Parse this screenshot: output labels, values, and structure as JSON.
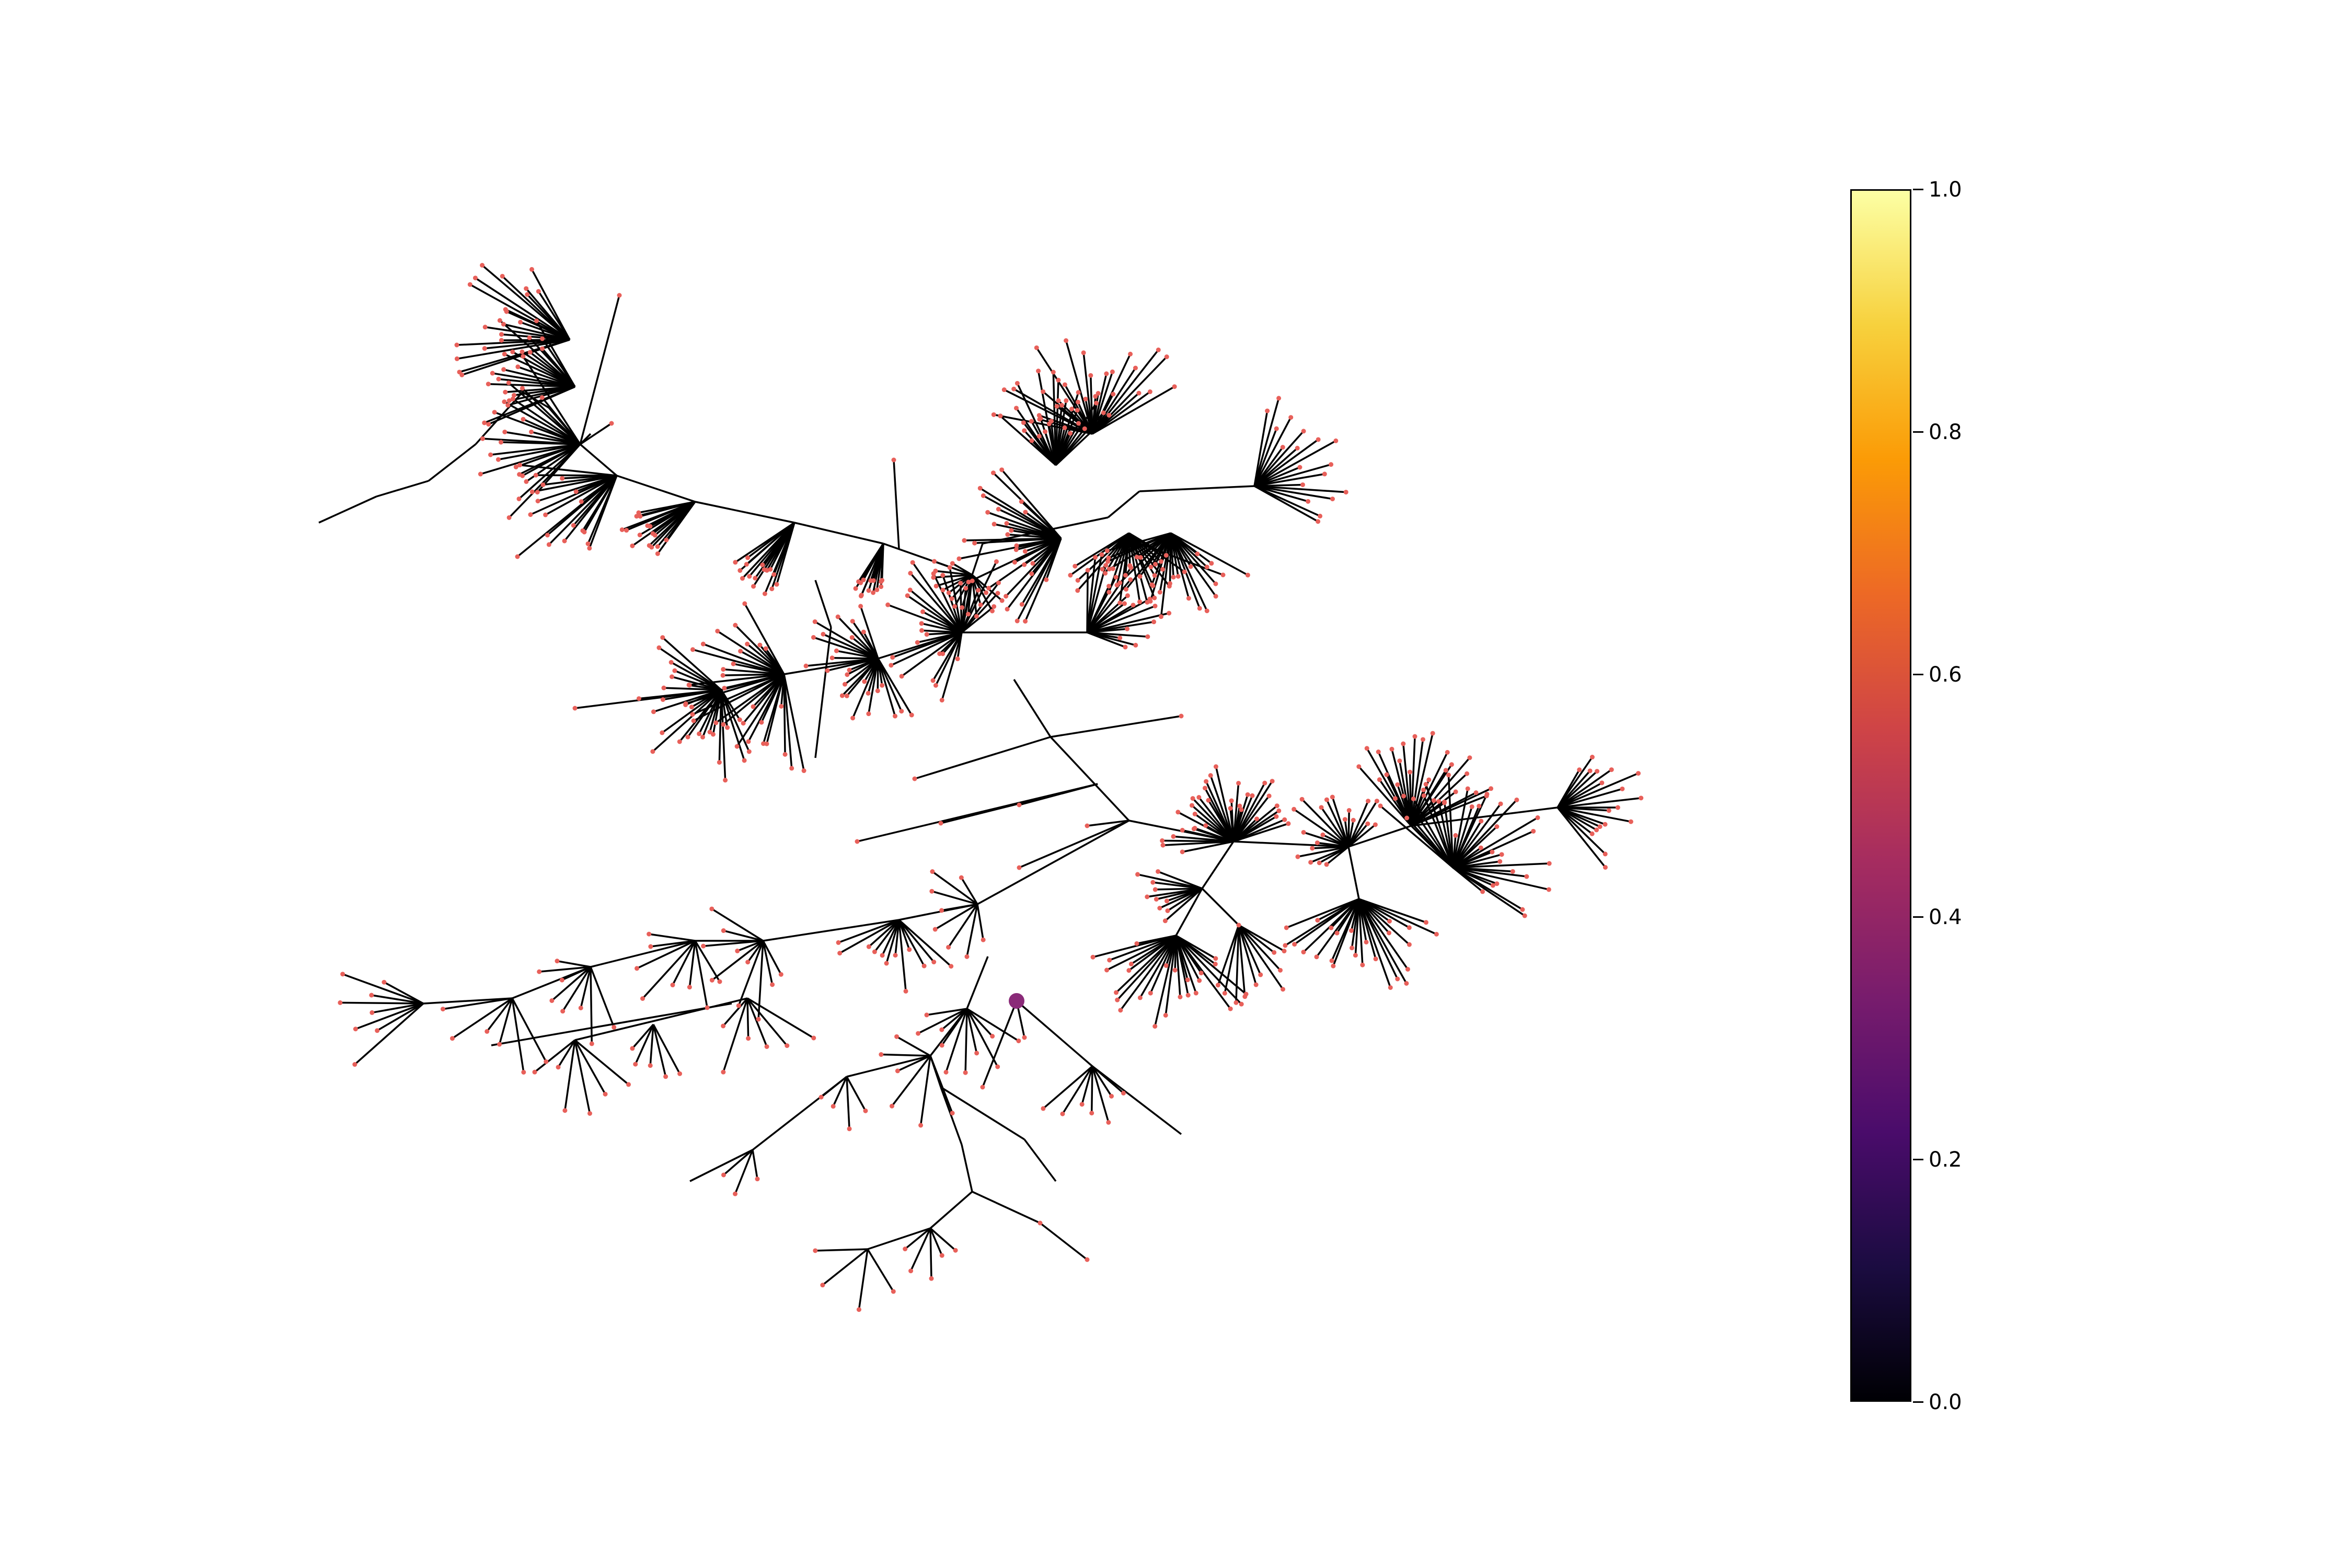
{
  "colorbar": {
    "colormap": "inferno",
    "range": [
      0.0,
      1.0
    ],
    "ticks": [
      "0.0",
      "0.2",
      "0.4",
      "0.6",
      "0.8",
      "1.0"
    ],
    "stops": [
      "#000004",
      "#1b0c41",
      "#4a0c6b",
      "#781c6d",
      "#a52c60",
      "#cf4446",
      "#ed6925",
      "#fb9b06",
      "#f7d13d",
      "#fcffa4"
    ]
  },
  "graph": {
    "layout": "radial tree",
    "edge_color": "#000000",
    "leaf_node_color": "#e8605a",
    "highlighted_node": {
      "color": "#8a2a78",
      "colormap_value": 0.4
    }
  }
}
